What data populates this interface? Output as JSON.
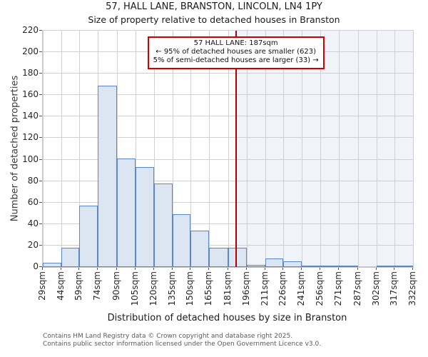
{
  "chart_data": {
    "type": "bar",
    "title": "57, HALL LANE, BRANSTON, LINCOLN, LN4 1PY",
    "subtitle": "Size of property relative to detached houses in Branston",
    "xlabel": "Distribution of detached houses by size in Branston",
    "ylabel": "Number of detached properties",
    "ylim": [
      0,
      220
    ],
    "ytick_step": 20,
    "grid": true,
    "bin_edges_sqm": [
      29,
      44,
      59,
      74,
      90,
      105,
      120,
      135,
      150,
      165,
      181,
      196,
      211,
      226,
      241,
      256,
      271,
      287,
      302,
      317,
      332
    ],
    "xtick_labels": [
      "29sqm",
      "44sqm",
      "59sqm",
      "74sqm",
      "90sqm",
      "105sqm",
      "120sqm",
      "135sqm",
      "150sqm",
      "165sqm",
      "181sqm",
      "196sqm",
      "211sqm",
      "226sqm",
      "241sqm",
      "256sqm",
      "271sqm",
      "287sqm",
      "302sqm",
      "317sqm",
      "332sqm"
    ],
    "values": [
      4,
      18,
      57,
      169,
      101,
      93,
      78,
      49,
      34,
      18,
      18,
      2,
      8,
      5,
      1,
      1,
      1,
      0,
      1,
      1
    ],
    "marker": {
      "value_sqm": 187,
      "label": "57 HALL LANE: 187sqm"
    },
    "annotation_lines": [
      "57 HALL LANE: 187sqm",
      "← 95% of detached houses are smaller (623)",
      "5% of semi-detached houses are larger (33) →"
    ],
    "colors": {
      "bar_fill": "#dce6f2",
      "bar_edge": "#5b87c5",
      "marker_line": "#b00000",
      "annotation_border": "#cc0000",
      "shade_right_of_marker": "#f0f3fa",
      "gridline": "#d0d0d0"
    }
  },
  "footer": {
    "line1": "Contains HM Land Registry data © Crown copyright and database right 2025.",
    "line2": "Contains public sector information licensed under the Open Government Licence v3.0."
  }
}
